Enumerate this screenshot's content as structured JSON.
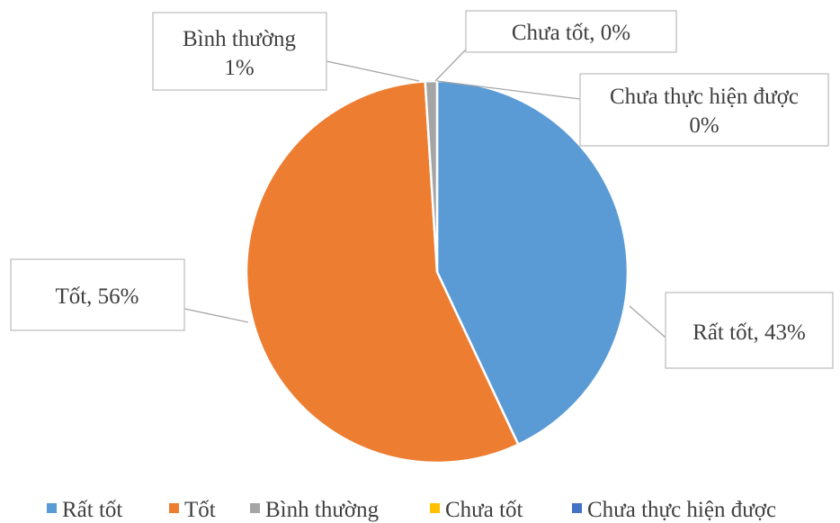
{
  "chart_data": {
    "type": "pie",
    "title": "",
    "slices": [
      {
        "label": "Rất tốt",
        "value": 43,
        "display": "Rất tốt, 43%",
        "color": "#5b9bd5"
      },
      {
        "label": "Tốt",
        "value": 56,
        "display": "Tốt, 56%",
        "color": "#ed7d31"
      },
      {
        "label": "Bình thường",
        "value": 1,
        "display_line1": "Bình thường",
        "display_line2": "1%",
        "color": "#a5a5a5"
      },
      {
        "label": "Chưa tốt",
        "value": 0,
        "display": "Chưa tốt, 0%",
        "color": "#ffc000"
      },
      {
        "label": "Chưa thực hiện được",
        "value": 0,
        "display_line1": "Chưa thực hiện được",
        "display_line2": "0%",
        "color": "#4472c4"
      }
    ],
    "legend": {
      "position": "bottom",
      "items": [
        "Rất tốt",
        "Tốt",
        "Bình thường",
        "Chưa tốt",
        "Chưa thực hiện được"
      ]
    },
    "data_labels": "callout boxes with leader lines"
  }
}
